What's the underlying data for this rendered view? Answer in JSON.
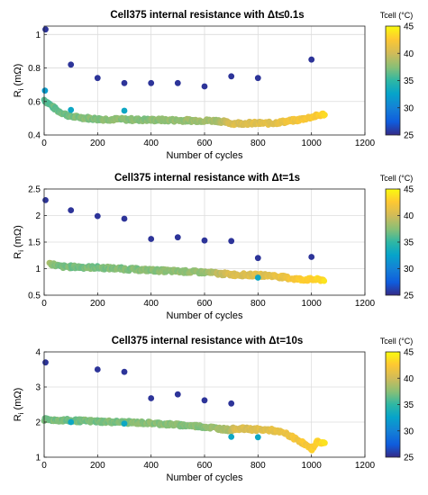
{
  "chart_data": [
    {
      "type": "scatter",
      "title": "Cell375 internal resistance with  Δt≤0.1s",
      "xlabel": "Number of cycles",
      "ylabel": "R",
      "ylabel_sub": "i",
      "ylabel_unit": " (mΩ)",
      "xlim": [
        0,
        1200
      ],
      "ylim": [
        0.4,
        1.05
      ],
      "xticks": [
        "0",
        "200",
        "400",
        "600",
        "800",
        "1000",
        "1200"
      ],
      "yticks": [
        "0.4",
        "0.6",
        "0.8",
        "1"
      ],
      "yticks_values": [
        0.4,
        0.6,
        0.8,
        1.0
      ],
      "grid": true,
      "colorbar": {
        "label": "Tcell (°C)",
        "range": [
          25,
          45
        ],
        "ticks": [
          "25",
          "30",
          "35",
          "40",
          "45"
        ]
      },
      "outliers": [
        {
          "x": 5,
          "y": 1.03,
          "t": 25.5
        },
        {
          "x": 100,
          "y": 0.82,
          "t": 25.5
        },
        {
          "x": 200,
          "y": 0.74,
          "t": 25.5
        },
        {
          "x": 300,
          "y": 0.71,
          "t": 25.5
        },
        {
          "x": 400,
          "y": 0.71,
          "t": 25.5
        },
        {
          "x": 500,
          "y": 0.71,
          "t": 25.5
        },
        {
          "x": 600,
          "y": 0.69,
          "t": 25.5
        },
        {
          "x": 700,
          "y": 0.75,
          "t": 25.5
        },
        {
          "x": 800,
          "y": 0.74,
          "t": 25.5
        },
        {
          "x": 1000,
          "y": 0.85,
          "t": 25.5
        },
        {
          "x": 3,
          "y": 0.665,
          "t": 32
        },
        {
          "x": 100,
          "y": 0.55,
          "t": 33
        },
        {
          "x": 300,
          "y": 0.545,
          "t": 33
        }
      ],
      "trend": [
        {
          "x": 0,
          "y": 0.61,
          "t": 36
        },
        {
          "x": 50,
          "y": 0.545,
          "t": 36.5
        },
        {
          "x": 100,
          "y": 0.51,
          "t": 37
        },
        {
          "x": 200,
          "y": 0.495,
          "t": 37.5
        },
        {
          "x": 400,
          "y": 0.49,
          "t": 37.5
        },
        {
          "x": 650,
          "y": 0.485,
          "t": 38.5
        },
        {
          "x": 700,
          "y": 0.47,
          "t": 40.5
        },
        {
          "x": 850,
          "y": 0.47,
          "t": 41
        },
        {
          "x": 950,
          "y": 0.49,
          "t": 42
        },
        {
          "x": 1050,
          "y": 0.525,
          "t": 43
        }
      ]
    },
    {
      "type": "scatter",
      "title": "Cell375 internal resistance with  Δt=1s",
      "xlabel": "Number of cycles",
      "ylabel": "R",
      "ylabel_sub": "i",
      "ylabel_unit": " (mΩ)",
      "xlim": [
        0,
        1200
      ],
      "ylim": [
        0.5,
        2.5
      ],
      "xticks": [
        "0",
        "200",
        "400",
        "600",
        "800",
        "1000",
        "1200"
      ],
      "yticks": [
        "0.5",
        "1",
        "1.5",
        "2",
        "2.5"
      ],
      "yticks_values": [
        0.5,
        1.0,
        1.5,
        2.0,
        2.5
      ],
      "grid": true,
      "colorbar": {
        "label": "Tcell (°C)",
        "range": [
          25,
          45
        ],
        "ticks": [
          "25",
          "30",
          "35",
          "40",
          "45"
        ]
      },
      "outliers": [
        {
          "x": 5,
          "y": 2.29,
          "t": 25.5
        },
        {
          "x": 100,
          "y": 2.1,
          "t": 25.5
        },
        {
          "x": 200,
          "y": 1.99,
          "t": 25.5
        },
        {
          "x": 300,
          "y": 1.94,
          "t": 25.5
        },
        {
          "x": 400,
          "y": 1.56,
          "t": 25.5
        },
        {
          "x": 500,
          "y": 1.59,
          "t": 25.5
        },
        {
          "x": 600,
          "y": 1.53,
          "t": 25.5
        },
        {
          "x": 700,
          "y": 1.52,
          "t": 25.5
        },
        {
          "x": 800,
          "y": 1.2,
          "t": 25.5
        },
        {
          "x": 1000,
          "y": 1.22,
          "t": 25.5
        },
        {
          "x": 800,
          "y": 0.83,
          "t": 33
        }
      ],
      "trend": [
        {
          "x": 20,
          "y": 1.1,
          "t": 38
        },
        {
          "x": 60,
          "y": 1.04,
          "t": 37
        },
        {
          "x": 200,
          "y": 1.02,
          "t": 37
        },
        {
          "x": 400,
          "y": 0.97,
          "t": 37.5
        },
        {
          "x": 600,
          "y": 0.93,
          "t": 38
        },
        {
          "x": 700,
          "y": 0.89,
          "t": 40.5
        },
        {
          "x": 850,
          "y": 0.87,
          "t": 41
        },
        {
          "x": 950,
          "y": 0.8,
          "t": 42.5
        },
        {
          "x": 1050,
          "y": 0.79,
          "t": 43.5
        }
      ]
    },
    {
      "type": "scatter",
      "title": "Cell375 internal resistance with  Δt=10s",
      "xlabel": "Number of cycles",
      "ylabel": "R",
      "ylabel_sub": "i",
      "ylabel_unit": " (mΩ)",
      "xlim": [
        0,
        1200
      ],
      "ylim": [
        1,
        4
      ],
      "xticks": [
        "0",
        "200",
        "400",
        "600",
        "800",
        "1000",
        "1200"
      ],
      "yticks": [
        "1",
        "2",
        "3",
        "4"
      ],
      "yticks_values": [
        1,
        2,
        3,
        4
      ],
      "grid": true,
      "colorbar": {
        "label": "Tcell (°C)",
        "range": [
          25,
          45
        ],
        "ticks": [
          "25",
          "30",
          "35",
          "40",
          "45"
        ]
      },
      "outliers": [
        {
          "x": 5,
          "y": 3.7,
          "t": 25.5
        },
        {
          "x": 200,
          "y": 3.5,
          "t": 25.5
        },
        {
          "x": 300,
          "y": 3.43,
          "t": 25.5
        },
        {
          "x": 400,
          "y": 2.68,
          "t": 25.5
        },
        {
          "x": 500,
          "y": 2.79,
          "t": 25.5
        },
        {
          "x": 600,
          "y": 2.62,
          "t": 25.5
        },
        {
          "x": 700,
          "y": 2.53,
          "t": 25.5
        },
        {
          "x": 100,
          "y": 2.0,
          "t": 33
        },
        {
          "x": 300,
          "y": 1.96,
          "t": 33
        },
        {
          "x": 700,
          "y": 1.58,
          "t": 33
        },
        {
          "x": 800,
          "y": 1.57,
          "t": 33
        }
      ],
      "trend": [
        {
          "x": 0,
          "y": 2.07,
          "t": 37
        },
        {
          "x": 200,
          "y": 2.02,
          "t": 37
        },
        {
          "x": 400,
          "y": 1.97,
          "t": 37.5
        },
        {
          "x": 600,
          "y": 1.87,
          "t": 37.5
        },
        {
          "x": 700,
          "y": 1.77,
          "t": 39
        },
        {
          "x": 710,
          "y": 1.82,
          "t": 40.5
        },
        {
          "x": 850,
          "y": 1.77,
          "t": 41
        },
        {
          "x": 900,
          "y": 1.68,
          "t": 41.5
        },
        {
          "x": 960,
          "y": 1.45,
          "t": 42
        },
        {
          "x": 1000,
          "y": 1.22,
          "t": 42.5
        },
        {
          "x": 1020,
          "y": 1.44,
          "t": 43
        },
        {
          "x": 1050,
          "y": 1.4,
          "t": 43.5
        }
      ]
    }
  ]
}
